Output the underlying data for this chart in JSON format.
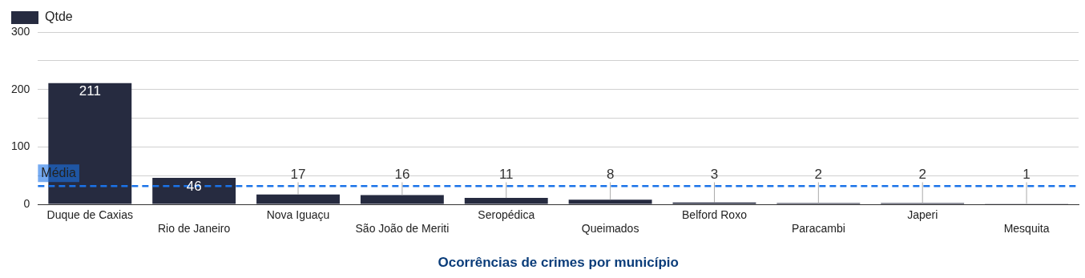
{
  "chart_data": {
    "type": "bar",
    "xlabel": "Ocorrências de crimes por município",
    "categories": [
      "Duque de Caxias",
      "Rio de Janeiro",
      "Nova Iguaçu",
      "São João de Meriti",
      "Seropédica",
      "Queimados",
      "Belford Roxo",
      "Paracambi",
      "Japeri",
      "Mesquita"
    ],
    "series": [
      {
        "name": "Qtde",
        "color": "#262b40",
        "values": [
          211,
          46,
          17,
          16,
          11,
          8,
          3,
          2,
          2,
          1
        ]
      }
    ],
    "ylim": [
      0,
      300
    ],
    "yticks": [
      0,
      {
        "value": 50,
        "label": null
      },
      100,
      {
        "value": 150,
        "label": null
      },
      200,
      {
        "value": 250,
        "label": null
      },
      300
    ],
    "grid": "y",
    "legend": "top left",
    "data_labels": true,
    "ref_lines": [
      {
        "axis": "y",
        "value": 31.7,
        "label": "Média",
        "color": "#1a73e8",
        "line_style": "dashed"
      }
    ]
  }
}
